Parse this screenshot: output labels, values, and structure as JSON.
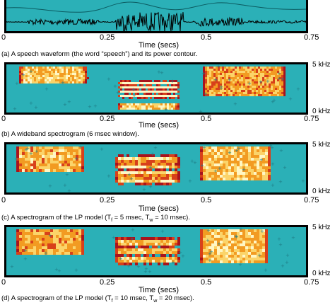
{
  "figures": [
    {
      "id": "a",
      "kind": "waveform",
      "x_ticks": [
        "0",
        "0.25",
        "0.5",
        "0.75"
      ],
      "xlabel": "Time (secs)",
      "caption": "(a) A speech waveform (the word “speech”) and its power contour.",
      "freq_top": "",
      "freq_bottom": ""
    },
    {
      "id": "b",
      "kind": "spectrogram",
      "x_ticks": [
        "0",
        "0.25",
        "0.5",
        "0.75"
      ],
      "xlabel": "Time (secs)",
      "caption": "(b) A wideband spectrogram (6 msec window).",
      "freq_top": "5 kHz",
      "freq_bottom": "0 kHz"
    },
    {
      "id": "c",
      "kind": "spectrogram",
      "x_ticks": [
        "0",
        "0.25",
        "0.5",
        "0.75"
      ],
      "xlabel": "Time (secs)",
      "caption_prefix": "(c) A spectrogram of the LP model (T",
      "caption_sub1": "f",
      "caption_mid": " = 5 msec, T",
      "caption_sub2": "w",
      "caption_suffix": " = 10 msec).",
      "freq_top": "5 kHz",
      "freq_bottom": "0 kHz"
    },
    {
      "id": "d",
      "kind": "spectrogram",
      "x_ticks": [
        "0",
        "0.25",
        "0.5",
        "0.75"
      ],
      "xlabel": "Time (secs)",
      "caption_prefix": "(d) A spectrogram of the LP model (T",
      "caption_sub1": "f",
      "caption_mid": " = 10 msec, T",
      "caption_sub2": "w",
      "caption_suffix": " = 20 msec).",
      "freq_top": "5 kHz",
      "freq_bottom": "0 kHz"
    }
  ],
  "colors": {
    "background": "#2bb0b7",
    "hot_low": "#b0121b",
    "hot_mid": "#f08a1a",
    "hot_high": "#fff3a0",
    "frame": "#000000"
  }
}
